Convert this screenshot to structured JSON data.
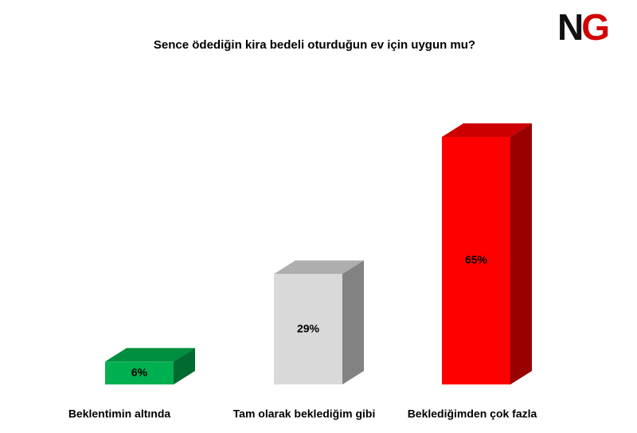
{
  "logo": [
    "N",
    "G"
  ],
  "chart_data": {
    "type": "bar3d",
    "title": "Sence ödediğin kira bedeli oturduğun ev için uygun mu?",
    "categories": [
      "Beklentimin altında",
      "Tam olarak beklediğim gibi",
      "Beklediğimden çok fazla"
    ],
    "values": [
      6,
      29,
      65
    ],
    "value_labels": [
      "6%",
      "29%",
      "65%"
    ],
    "colors": [
      "#00b050",
      "#d9d9d9",
      "#ff0000"
    ]
  }
}
